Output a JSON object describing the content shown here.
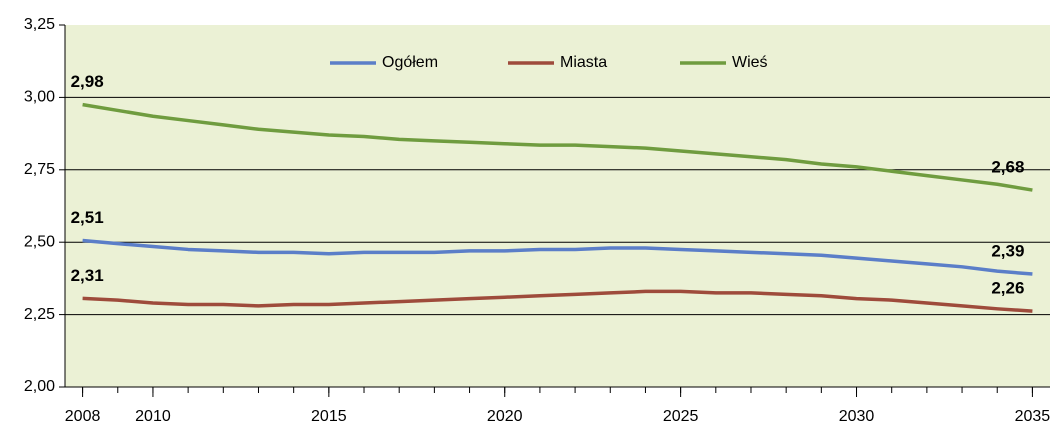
{
  "chart_data": {
    "type": "line",
    "x": [
      2008,
      2009,
      2010,
      2011,
      2012,
      2013,
      2014,
      2015,
      2016,
      2017,
      2018,
      2019,
      2020,
      2021,
      2022,
      2023,
      2024,
      2025,
      2026,
      2027,
      2028,
      2029,
      2030,
      2031,
      2032,
      2033,
      2034,
      2035
    ],
    "xlim": [
      2007.5,
      2035.5
    ],
    "xticks": [
      2008,
      2010,
      2015,
      2020,
      2025,
      2030,
      2035
    ],
    "ylim": [
      2.0,
      3.25
    ],
    "yticks": [
      {
        "value": 2.0,
        "label": "2,00"
      },
      {
        "value": 2.25,
        "label": "2,25"
      },
      {
        "value": 2.5,
        "label": "2,50"
      },
      {
        "value": 2.75,
        "label": "2,75"
      },
      {
        "value": 3.0,
        "label": "3,00"
      },
      {
        "value": 3.25,
        "label": "3,25"
      }
    ],
    "grid": true,
    "legend": "top",
    "background": "#ebf1d5",
    "series": [
      {
        "name": "Ogółem",
        "color": "#5b7ec8",
        "values": [
          2.506,
          2.495,
          2.485,
          2.475,
          2.47,
          2.465,
          2.465,
          2.46,
          2.465,
          2.465,
          2.465,
          2.47,
          2.47,
          2.475,
          2.475,
          2.48,
          2.48,
          2.475,
          2.47,
          2.465,
          2.46,
          2.455,
          2.445,
          2.435,
          2.425,
          2.415,
          2.4,
          2.39
        ],
        "value_labels": [
          "2,51",
          null,
          null,
          null,
          null,
          null,
          null,
          null,
          null,
          null,
          null,
          null,
          null,
          null,
          null,
          null,
          null,
          null,
          null,
          null,
          null,
          null,
          null,
          null,
          null,
          null,
          null,
          "2,39"
        ]
      },
      {
        "name": "Miasta",
        "color": "#9e4b3b",
        "values": [
          2.306,
          2.3,
          2.29,
          2.285,
          2.285,
          2.28,
          2.285,
          2.285,
          2.29,
          2.295,
          2.3,
          2.305,
          2.31,
          2.315,
          2.32,
          2.325,
          2.33,
          2.33,
          2.325,
          2.325,
          2.32,
          2.315,
          2.305,
          2.3,
          2.29,
          2.28,
          2.27,
          2.262
        ],
        "value_labels": [
          "2,31",
          null,
          null,
          null,
          null,
          null,
          null,
          null,
          null,
          null,
          null,
          null,
          null,
          null,
          null,
          null,
          null,
          null,
          null,
          null,
          null,
          null,
          null,
          null,
          null,
          null,
          null,
          "2,26"
        ]
      },
      {
        "name": "Wieś",
        "color": "#6f9c3f",
        "values": [
          2.975,
          2.955,
          2.935,
          2.92,
          2.905,
          2.89,
          2.88,
          2.87,
          2.865,
          2.855,
          2.85,
          2.845,
          2.84,
          2.835,
          2.835,
          2.83,
          2.825,
          2.815,
          2.805,
          2.795,
          2.785,
          2.77,
          2.76,
          2.745,
          2.73,
          2.715,
          2.7,
          2.68
        ],
        "value_labels": [
          "2,98",
          null,
          null,
          null,
          null,
          null,
          null,
          null,
          null,
          null,
          null,
          null,
          null,
          null,
          null,
          null,
          null,
          null,
          null,
          null,
          null,
          null,
          null,
          null,
          null,
          null,
          null,
          "2,68"
        ]
      }
    ]
  }
}
